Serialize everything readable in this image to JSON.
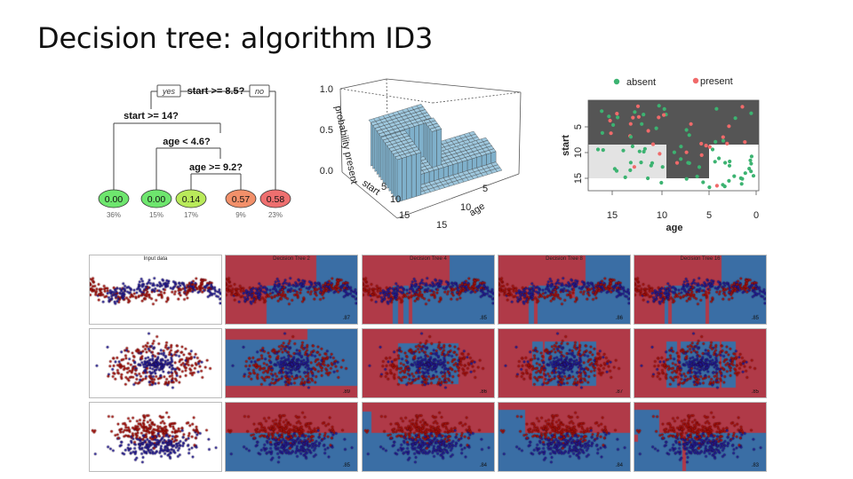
{
  "slide": {
    "title": "Decision tree: algorithm ID3"
  },
  "tree": {
    "root": "start >= 8.5?",
    "yes": "yes",
    "no": "no",
    "n1": "start >= 14?",
    "n2": "age < 4.6?",
    "n3": "age >= 9.2?",
    "leaves": [
      {
        "value": "0.00",
        "pct": "36%",
        "color": "#6ee66e"
      },
      {
        "value": "0.00",
        "pct": "15%",
        "color": "#6ee66e"
      },
      {
        "value": "0.14",
        "pct": "17%",
        "color": "#b9ea5a"
      },
      {
        "value": "0.57",
        "pct": "9%",
        "color": "#f2906a"
      },
      {
        "value": "0.58",
        "pct": "23%",
        "color": "#ee6f6f"
      }
    ]
  },
  "surface3d": {
    "zlabel": "probability present",
    "zticks": [
      "1.0",
      "0.5",
      "0.0"
    ],
    "start_label": "start",
    "start_ticks": [
      "5",
      "10",
      "15"
    ],
    "age_label": "age",
    "age_ticks": [
      "5",
      "10",
      "15"
    ]
  },
  "partition": {
    "legend_absent": "absent",
    "legend_present": "present",
    "absent_color": "#3cb371",
    "present_color": "#f06a6a",
    "ylabel": "start",
    "yticks": [
      "5",
      "10",
      "15"
    ],
    "xlabel": "age",
    "xticks": [
      "15",
      "10",
      "5",
      "0"
    ]
  },
  "grid": {
    "col_titles": [
      "Input data",
      "Decision Tree 2",
      "Decision Tree 4",
      "Decision Tree 8",
      "Decision Tree 16"
    ],
    "scores": [
      [
        "",
        ".87",
        ".85",
        ".86",
        ".85"
      ],
      [
        "",
        ".89",
        ".86",
        ".87",
        ".85"
      ],
      [
        "",
        ".85",
        ".84",
        ".84",
        ".83"
      ]
    ],
    "red": "#b03a48",
    "blue": "#3a6ea5"
  }
}
